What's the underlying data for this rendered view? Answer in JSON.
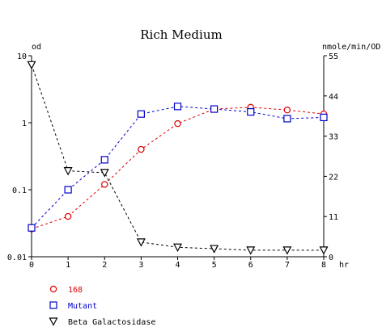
{
  "chart_data": {
    "type": "line",
    "title": "Rich Medium",
    "xlabel": "hr",
    "ylabel_left": "od",
    "ylabel_right": "nmole/min/OD",
    "x": [
      0,
      1,
      2,
      3,
      4,
      5,
      6,
      7,
      8
    ],
    "x_ticks": [
      "0",
      "1",
      "2",
      "3",
      "4",
      "5",
      "6",
      "7",
      "8"
    ],
    "xlim": [
      0,
      8
    ],
    "y_left_scale": "log",
    "y_left_lim": [
      0.01,
      10
    ],
    "y_left_ticks": [
      "10",
      "1",
      "0.1",
      "0.01"
    ],
    "y_right_lim": [
      0,
      55
    ],
    "y_right_ticks": [
      "55",
      "44",
      "33",
      "22",
      "11",
      "0"
    ],
    "grid": false,
    "legend_position": "bottom-left",
    "series": [
      {
        "name": "168",
        "axis": "left",
        "marker": "circle",
        "color": "#dd0000",
        "values": [
          0.026,
          0.04,
          0.12,
          0.4,
          0.97,
          1.6,
          1.7,
          1.55,
          1.35
        ]
      },
      {
        "name": "Mutant",
        "axis": "left",
        "marker": "square",
        "color": "#0000cc",
        "values": [
          0.027,
          0.1,
          0.28,
          1.35,
          1.75,
          1.6,
          1.45,
          1.15,
          1.2
        ]
      },
      {
        "name": "Beta Galactosidase",
        "axis": "right",
        "marker": "triangle-down",
        "color": "#000000",
        "values": [
          52.5,
          23.5,
          23.0,
          4.0,
          2.6,
          2.2,
          1.8,
          1.8,
          1.8
        ]
      }
    ]
  }
}
